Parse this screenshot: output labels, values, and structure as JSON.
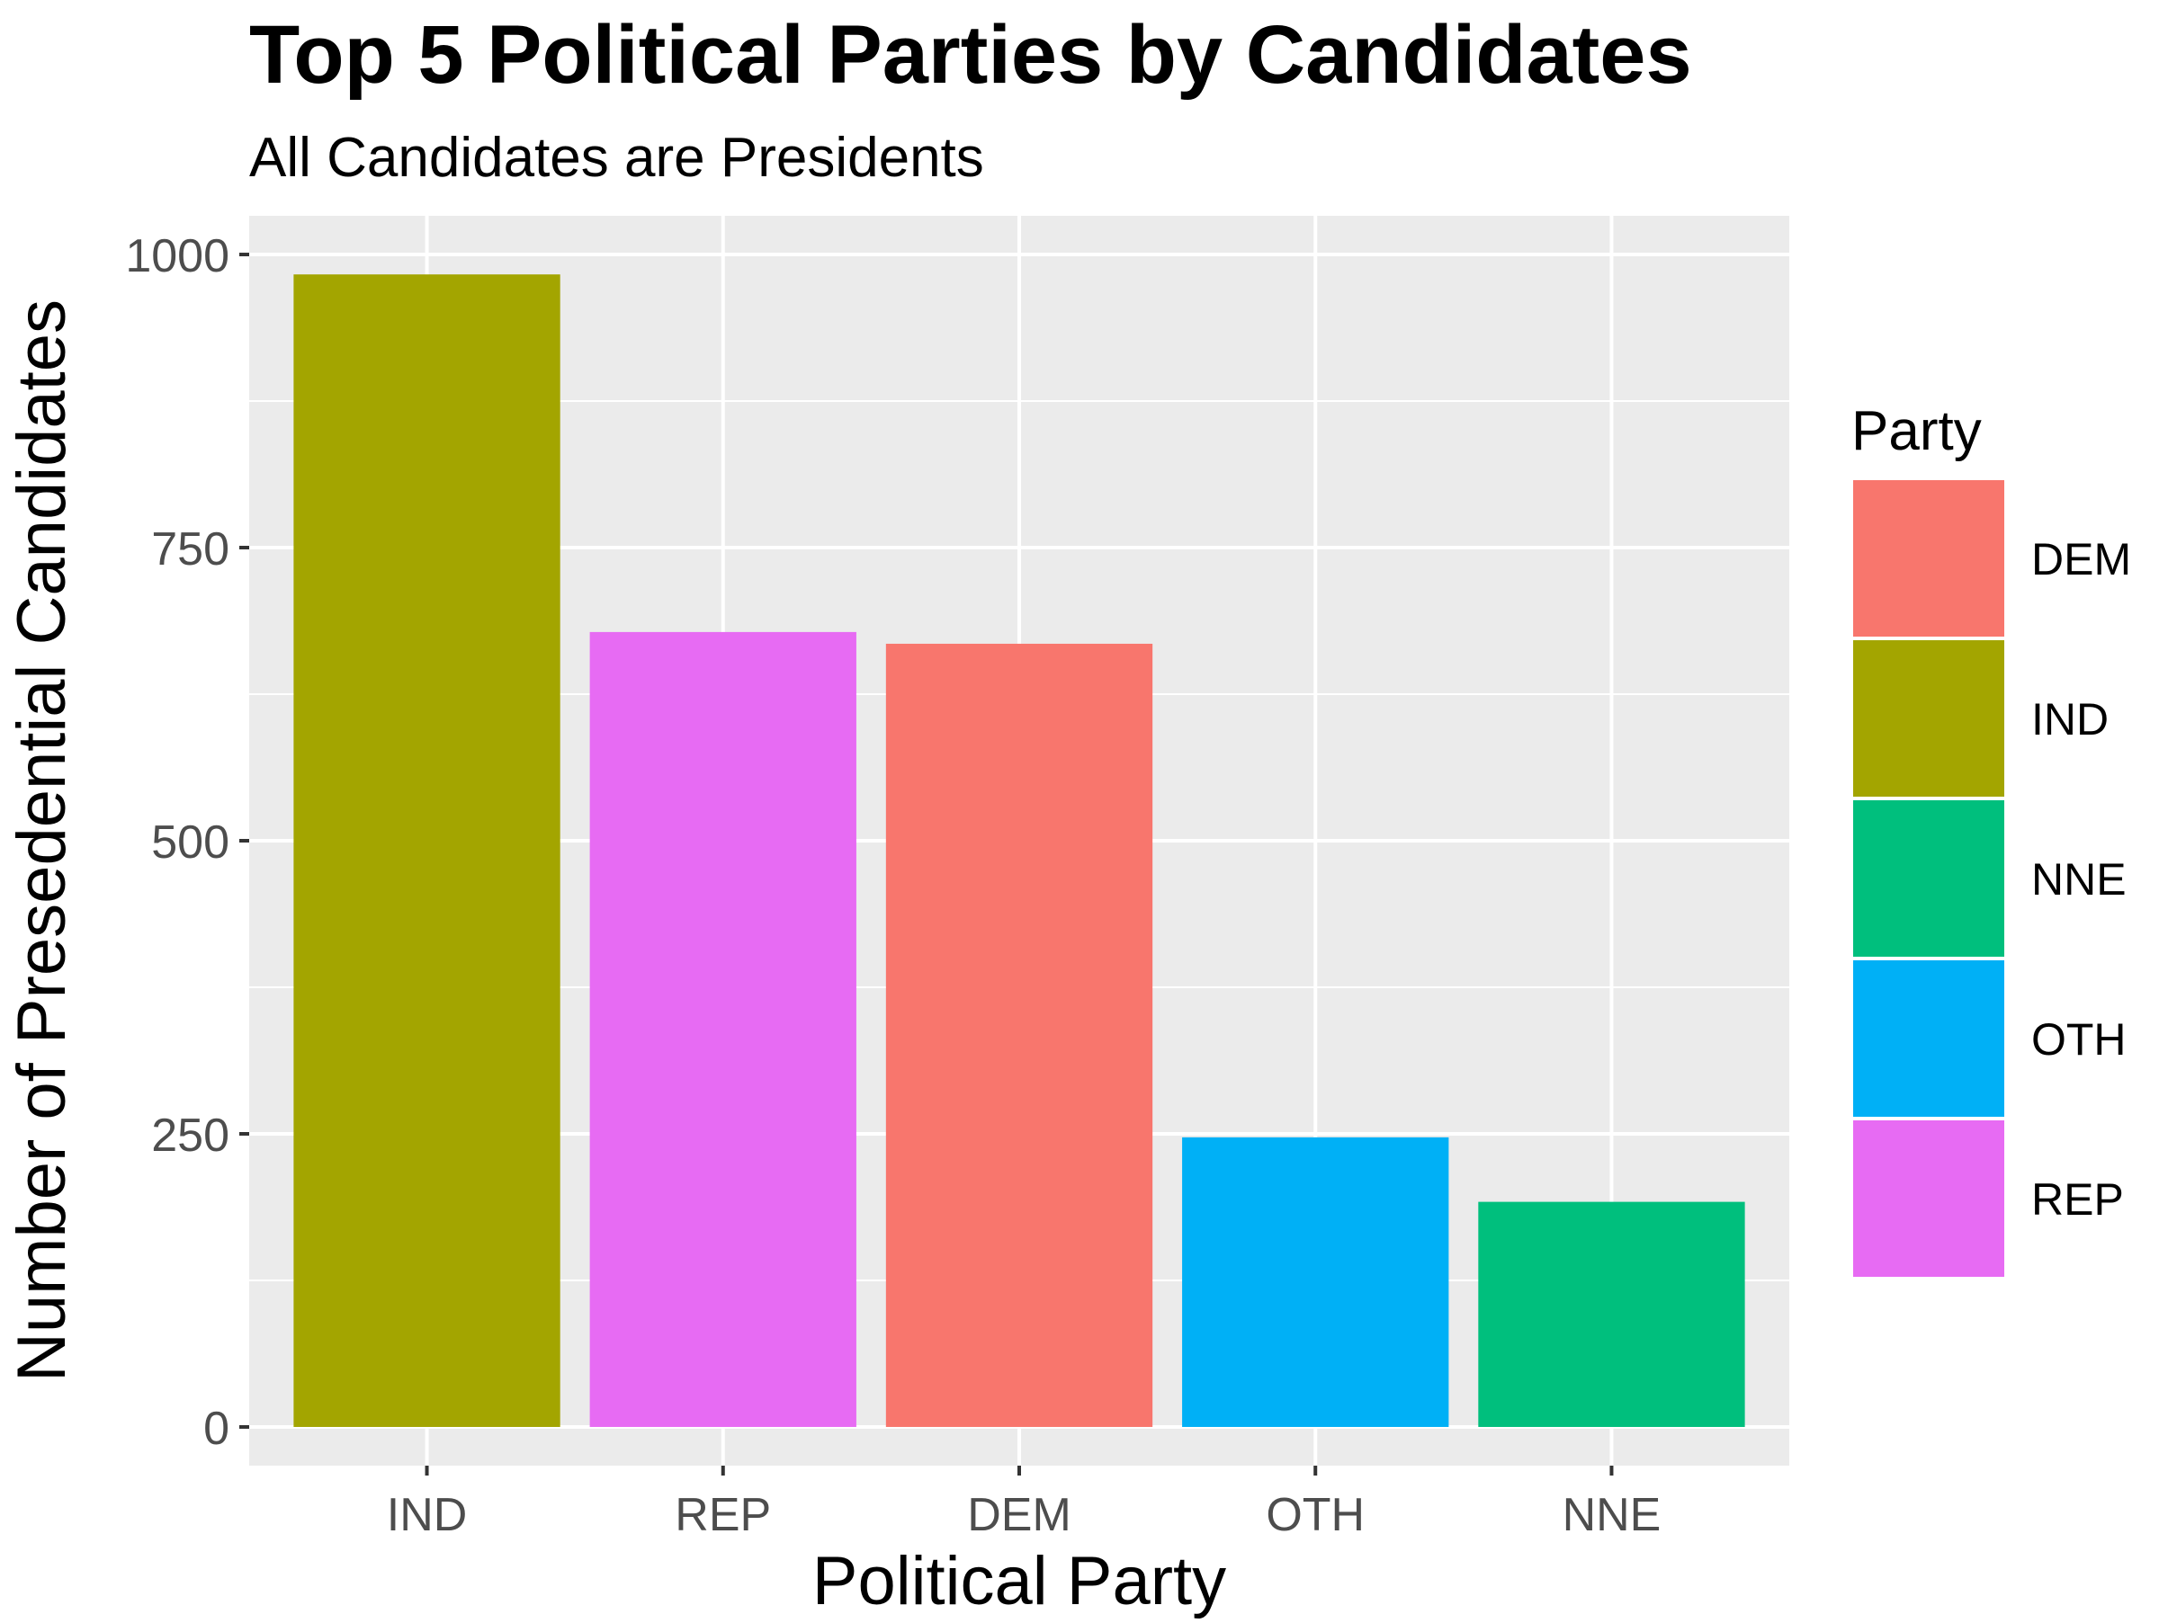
{
  "chart_data": {
    "type": "bar",
    "title": "Top 5 Political Parties by Candidates",
    "subtitle": "All Candidates are Presidents",
    "xlabel": "Political Party",
    "ylabel": "Number of Presedential Candidates",
    "categories": [
      "IND",
      "REP",
      "DEM",
      "OTH",
      "NNE"
    ],
    "values": [
      983,
      678,
      668,
      247,
      192
    ],
    "ylim": [
      -33,
      1033
    ],
    "yticks": [
      0,
      250,
      500,
      750,
      1000
    ],
    "grid": true,
    "legend": {
      "title": "Party",
      "placement": "right",
      "entries": [
        "DEM",
        "IND",
        "NNE",
        "OTH",
        "REP"
      ]
    },
    "colors": {
      "DEM": "#F8766D",
      "IND": "#A3A500",
      "NNE": "#00BF7D",
      "OTH": "#00B0F6",
      "REP": "#E76BF3"
    }
  }
}
